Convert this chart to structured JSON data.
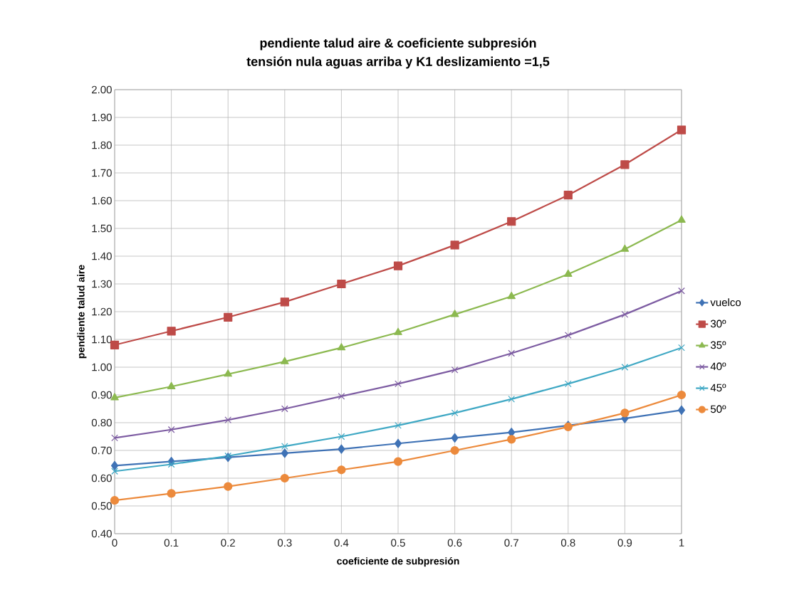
{
  "chart_data": {
    "type": "line",
    "title": "pendiente talud aire & coeficiente subpresión",
    "subtitle": "tensión nula aguas arriba y K1 deslizamiento =1,5",
    "xlabel": "coeficiente de subpresión",
    "ylabel": "pendiente talud aire",
    "categories": [
      "0",
      "0.1",
      "0.2",
      "0.3",
      "0.4",
      "0.5",
      "0.6",
      "0.7",
      "0.8",
      "0.9",
      "1"
    ],
    "series": [
      {
        "name": "vuelco",
        "color": "#3f72b5",
        "marker": "diamond",
        "values": [
          0.645,
          0.66,
          0.675,
          0.69,
          0.705,
          0.725,
          0.745,
          0.765,
          0.79,
          0.815,
          0.845
        ]
      },
      {
        "name": "30º",
        "color": "#be4b48",
        "marker": "square",
        "values": [
          1.08,
          1.13,
          1.18,
          1.235,
          1.3,
          1.365,
          1.44,
          1.525,
          1.62,
          1.73,
          1.855
        ]
      },
      {
        "name": "35º",
        "color": "#8cb950",
        "marker": "triangle",
        "values": [
          0.89,
          0.93,
          0.975,
          1.02,
          1.07,
          1.125,
          1.19,
          1.255,
          1.335,
          1.425,
          1.53
        ]
      },
      {
        "name": "40º",
        "color": "#7d5ca2",
        "marker": "cross",
        "values": [
          0.745,
          0.775,
          0.81,
          0.85,
          0.895,
          0.94,
          0.99,
          1.05,
          1.115,
          1.19,
          1.275
        ]
      },
      {
        "name": "45º",
        "color": "#3fa8c4",
        "marker": "cross",
        "values": [
          0.625,
          0.65,
          0.68,
          0.715,
          0.75,
          0.79,
          0.835,
          0.885,
          0.94,
          1.0,
          1.07
        ]
      },
      {
        "name": "50º",
        "color": "#ec8a3c",
        "marker": "circle",
        "values": [
          0.52,
          0.545,
          0.57,
          0.6,
          0.63,
          0.66,
          0.7,
          0.74,
          0.785,
          0.835,
          0.9
        ]
      }
    ],
    "ylim": [
      0.4,
      2.0
    ],
    "yticks": [
      {
        "value": 0.4,
        "label": "0.40"
      },
      {
        "value": 0.5,
        "label": "0.50"
      },
      {
        "value": 0.6,
        "label": "0.60"
      },
      {
        "value": 0.7,
        "label": "0.70"
      },
      {
        "value": 0.8,
        "label": "0.80"
      },
      {
        "value": 0.9,
        "label": "0.90"
      },
      {
        "value": 1.0,
        "label": "1.00"
      },
      {
        "value": 1.1,
        "label": "1.10"
      },
      {
        "value": 1.2,
        "label": "1.20"
      },
      {
        "value": 1.3,
        "label": "1.30"
      },
      {
        "value": 1.4,
        "label": "1.40"
      },
      {
        "value": 1.5,
        "label": "1.50"
      },
      {
        "value": 1.6,
        "label": "1.60"
      },
      {
        "value": 1.7,
        "label": "1.70"
      },
      {
        "value": 1.8,
        "label": "1.80"
      },
      {
        "value": 1.9,
        "label": "1.90"
      },
      {
        "value": 2.0,
        "label": "2.00"
      }
    ],
    "grid": true,
    "legend": "right",
    "line_style": "solid"
  }
}
